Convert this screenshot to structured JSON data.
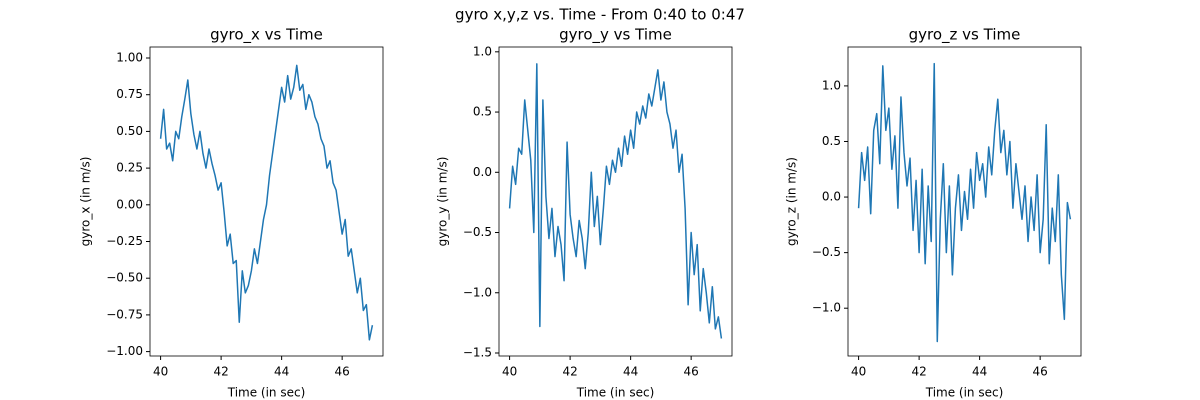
{
  "title": "gyro x,y,z vs. Time - From 0:40 to 0:47",
  "chart_data": [
    {
      "type": "line",
      "title": "gyro_x vs Time",
      "xlabel": "Time (in sec)",
      "ylabel": "gyro_x (in m/s)",
      "color": "#1f77b4",
      "x": [
        40,
        40.1,
        40.2,
        40.3,
        40.4,
        40.5,
        40.6,
        40.7,
        40.8,
        40.9,
        41,
        41.1,
        41.2,
        41.3,
        41.4,
        41.5,
        41.6,
        41.7,
        41.8,
        41.9,
        42,
        42.1,
        42.2,
        42.3,
        42.4,
        42.5,
        42.6,
        42.7,
        42.8,
        42.9,
        43,
        43.1,
        43.2,
        43.3,
        43.4,
        43.5,
        43.6,
        43.7,
        43.8,
        43.9,
        44,
        44.1,
        44.2,
        44.3,
        44.4,
        44.5,
        44.6,
        44.7,
        44.8,
        44.9,
        45,
        45.1,
        45.2,
        45.3,
        45.4,
        45.5,
        45.6,
        45.7,
        45.8,
        45.9,
        46,
        46.1,
        46.2,
        46.3,
        46.4,
        46.5,
        46.6,
        46.7,
        46.8,
        46.9,
        47
      ],
      "values": [
        0.45,
        0.65,
        0.38,
        0.42,
        0.3,
        0.5,
        0.45,
        0.6,
        0.72,
        0.85,
        0.62,
        0.48,
        0.38,
        0.5,
        0.35,
        0.25,
        0.38,
        0.28,
        0.2,
        0.1,
        0.15,
        -0.05,
        -0.28,
        -0.2,
        -0.4,
        -0.38,
        -0.8,
        -0.45,
        -0.6,
        -0.55,
        -0.45,
        -0.3,
        -0.4,
        -0.25,
        -0.1,
        0.0,
        0.2,
        0.35,
        0.5,
        0.65,
        0.8,
        0.7,
        0.88,
        0.72,
        0.8,
        0.95,
        0.78,
        0.82,
        0.65,
        0.75,
        0.7,
        0.6,
        0.55,
        0.45,
        0.4,
        0.25,
        0.3,
        0.15,
        0.1,
        -0.05,
        -0.2,
        -0.1,
        -0.35,
        -0.3,
        -0.45,
        -0.6,
        -0.5,
        -0.72,
        -0.68,
        -0.92,
        -0.82
      ],
      "xlim": [
        39.65,
        47.35
      ],
      "xticks": [
        40,
        42,
        44,
        46
      ],
      "ylim": [
        -1.03,
        1.075
      ],
      "yticks": [
        {
          "value": -1,
          "label": "−1.00"
        },
        {
          "value": -0.75,
          "label": "−0.75"
        },
        {
          "value": -0.5,
          "label": "−0.50"
        },
        {
          "value": -0.25,
          "label": "−0.25"
        },
        {
          "value": 0,
          "label": "0.00"
        },
        {
          "value": 0.25,
          "label": "0.25"
        },
        {
          "value": 0.5,
          "label": "0.50"
        },
        {
          "value": 0.75,
          "label": "0.75"
        },
        {
          "value": 1,
          "label": "1.00"
        }
      ]
    },
    {
      "type": "line",
      "title": "gyro_y vs Time",
      "xlabel": "Time (in sec)",
      "ylabel": "gyro_y (in m/s)",
      "color": "#1f77b4",
      "x": [
        40,
        40.1,
        40.2,
        40.3,
        40.4,
        40.5,
        40.6,
        40.7,
        40.8,
        40.9,
        41,
        41.1,
        41.2,
        41.3,
        41.4,
        41.5,
        41.6,
        41.7,
        41.8,
        41.9,
        42,
        42.1,
        42.2,
        42.3,
        42.4,
        42.5,
        42.6,
        42.7,
        42.8,
        42.9,
        43,
        43.1,
        43.2,
        43.3,
        43.4,
        43.5,
        43.6,
        43.7,
        43.8,
        43.9,
        44,
        44.1,
        44.2,
        44.3,
        44.4,
        44.5,
        44.6,
        44.7,
        44.8,
        44.9,
        45,
        45.1,
        45.2,
        45.3,
        45.4,
        45.5,
        45.6,
        45.7,
        45.8,
        45.9,
        46,
        46.1,
        46.2,
        46.3,
        46.4,
        46.5,
        46.6,
        46.7,
        46.8,
        46.9,
        47
      ],
      "values": [
        -0.3,
        0.05,
        -0.1,
        0.2,
        0.15,
        0.6,
        0.35,
        0.1,
        -0.5,
        0.9,
        -1.28,
        0.6,
        -0.2,
        -0.55,
        -0.3,
        -0.7,
        -0.45,
        -0.6,
        -0.9,
        0.25,
        -0.35,
        -0.55,
        -0.7,
        -0.4,
        -0.55,
        -0.8,
        -0.5,
        0.0,
        -0.45,
        -0.2,
        -0.6,
        -0.3,
        0.05,
        -0.1,
        0.1,
        0.0,
        0.2,
        0.05,
        0.3,
        0.15,
        0.35,
        0.2,
        0.5,
        0.4,
        0.55,
        0.45,
        0.65,
        0.55,
        0.7,
        0.85,
        0.6,
        0.75,
        0.5,
        0.4,
        0.2,
        0.35,
        0.0,
        0.15,
        -0.3,
        -1.1,
        -0.5,
        -0.85,
        -0.6,
        -1.15,
        -0.8,
        -1.0,
        -1.25,
        -0.95,
        -1.3,
        -1.2,
        -1.38
      ],
      "xlim": [
        39.65,
        47.35
      ],
      "xticks": [
        40,
        42,
        44,
        46
      ],
      "ylim": [
        -1.525,
        1.04
      ],
      "yticks": [
        {
          "value": -1.5,
          "label": "−1.5"
        },
        {
          "value": -1,
          "label": "−1.0"
        },
        {
          "value": -0.5,
          "label": "−0.5"
        },
        {
          "value": 0,
          "label": "0.0"
        },
        0.5,
        {
          "value": 1,
          "label": "1.0"
        }
      ]
    },
    {
      "type": "line",
      "title": "gyro_z vs Time",
      "xlabel": "Time (in sec)",
      "ylabel": "gyro_z (in m/s)",
      "color": "#1f77b4",
      "x": [
        40,
        40.1,
        40.2,
        40.3,
        40.4,
        40.5,
        40.6,
        40.7,
        40.8,
        40.9,
        41,
        41.1,
        41.2,
        41.3,
        41.4,
        41.5,
        41.6,
        41.7,
        41.8,
        41.9,
        42,
        42.1,
        42.2,
        42.3,
        42.4,
        42.5,
        42.6,
        42.7,
        42.8,
        42.9,
        43,
        43.1,
        43.2,
        43.3,
        43.4,
        43.5,
        43.6,
        43.7,
        43.8,
        43.9,
        44,
        44.1,
        44.2,
        44.3,
        44.4,
        44.5,
        44.6,
        44.7,
        44.8,
        44.9,
        45,
        45.1,
        45.2,
        45.3,
        45.4,
        45.5,
        45.6,
        45.7,
        45.8,
        45.9,
        46,
        46.1,
        46.2,
        46.3,
        46.4,
        46.5,
        46.6,
        46.7,
        46.8,
        46.9,
        47
      ],
      "values": [
        -0.1,
        0.4,
        0.15,
        0.45,
        -0.15,
        0.6,
        0.75,
        0.3,
        1.18,
        0.6,
        0.8,
        0.25,
        0.55,
        -0.1,
        0.9,
        0.4,
        0.1,
        0.35,
        -0.3,
        0.15,
        -0.5,
        0.25,
        -0.6,
        0.1,
        -0.4,
        1.2,
        -1.3,
        -0.2,
        0.3,
        -0.5,
        0.1,
        -0.7,
        -0.1,
        0.2,
        -0.3,
        0.05,
        -0.2,
        0.25,
        -0.1,
        0.4,
        0.15,
        0.3,
        0.0,
        0.45,
        0.2,
        0.6,
        0.88,
        0.4,
        0.6,
        0.2,
        0.5,
        -0.1,
        0.3,
        0.05,
        -0.2,
        0.1,
        -0.4,
        0.0,
        -0.3,
        0.2,
        -0.5,
        -0.2,
        0.65,
        -0.6,
        -0.1,
        -0.4,
        0.2,
        -0.7,
        -1.1,
        -0.05,
        -0.2
      ],
      "xlim": [
        39.65,
        47.35
      ],
      "xticks": [
        40,
        42,
        44,
        46
      ],
      "ylim": [
        -1.43,
        1.35
      ],
      "yticks": [
        {
          "value": -1,
          "label": "−1.0"
        },
        {
          "value": -0.5,
          "label": "−0.5"
        },
        {
          "value": 0,
          "label": "0.0"
        },
        0.5,
        {
          "value": 1,
          "label": "1.0"
        }
      ]
    }
  ]
}
